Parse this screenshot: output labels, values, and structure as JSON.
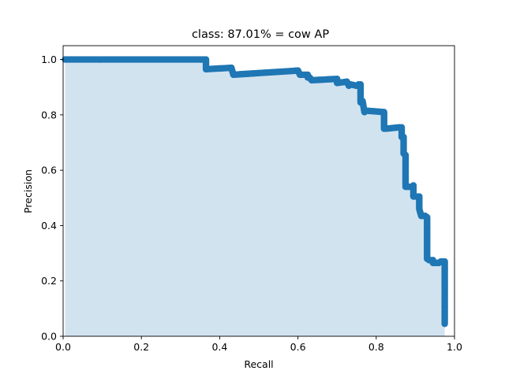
{
  "chart_data": {
    "type": "area",
    "title": "class: 87.01% = cow AP",
    "xlabel": "Recall",
    "ylabel": "Precision",
    "xlim": [
      0.0,
      1.0
    ],
    "ylim": [
      0.0,
      1.05
    ],
    "xticks": [
      "0.0",
      "0.2",
      "0.4",
      "0.6",
      "0.8",
      "1.0"
    ],
    "yticks": [
      "0.0",
      "0.2",
      "0.4",
      "0.6",
      "0.8",
      "1.0"
    ],
    "grid": false,
    "legend": "none",
    "colors": {
      "line": "#1f77b4",
      "fill": "#d2e3f0"
    },
    "series": [
      {
        "x": [
          0.005,
          0.365,
          0.365,
          0.43,
          0.435,
          0.6,
          0.605,
          0.625,
          0.625,
          0.63,
          0.635,
          0.7,
          0.7,
          0.725,
          0.73,
          0.735,
          0.75,
          0.755,
          0.76,
          0.76,
          0.765,
          0.77,
          0.775,
          0.82,
          0.82,
          0.825,
          0.86,
          0.865,
          0.865,
          0.87,
          0.87,
          0.875,
          0.875,
          0.89,
          0.895,
          0.895,
          0.91,
          0.91,
          0.915,
          0.925,
          0.93,
          0.93,
          0.935,
          0.945,
          0.945,
          0.96,
          0.965,
          0.975,
          0.975
        ],
        "y": [
          1.0,
          1.0,
          0.965,
          0.97,
          0.945,
          0.96,
          0.945,
          0.945,
          0.935,
          0.935,
          0.925,
          0.93,
          0.915,
          0.92,
          0.905,
          0.91,
          0.905,
          0.91,
          0.91,
          0.845,
          0.85,
          0.81,
          0.815,
          0.81,
          0.75,
          0.75,
          0.755,
          0.755,
          0.72,
          0.72,
          0.66,
          0.655,
          0.54,
          0.54,
          0.545,
          0.505,
          0.505,
          0.46,
          0.435,
          0.435,
          0.43,
          0.28,
          0.275,
          0.275,
          0.265,
          0.265,
          0.27,
          0.27,
          0.045
        ]
      }
    ]
  }
}
